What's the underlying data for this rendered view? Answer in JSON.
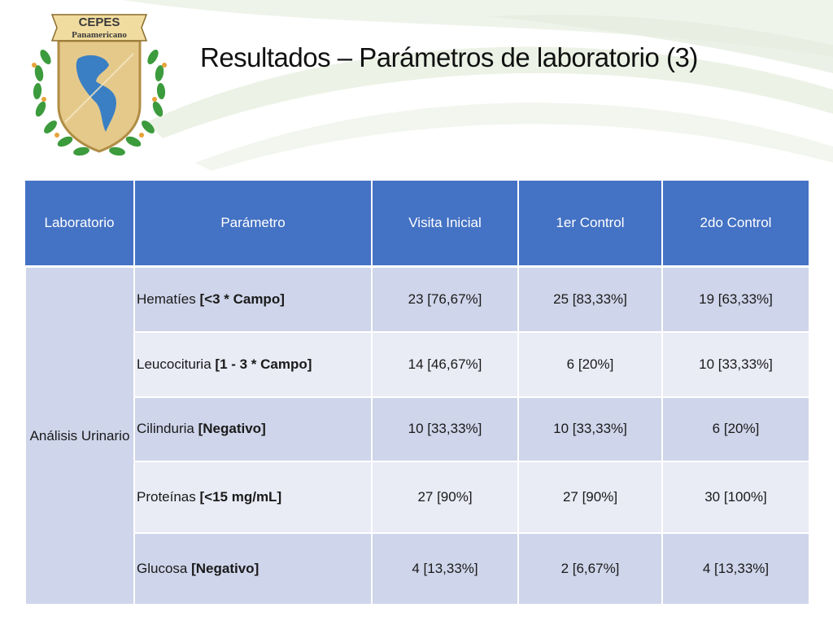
{
  "slide": {
    "title": "Resultados – Parámetros de laboratorio (3)",
    "logo": {
      "name": "CEPES",
      "sub": "Panamericano"
    }
  },
  "table": {
    "headers": [
      "Laboratorio",
      "Parámetro",
      "Visita Inicial",
      "1er Control",
      "2do Control"
    ],
    "group_label": "Análisis Urinario",
    "rows": [
      {
        "param": "Hematíes",
        "criteria": "[<3 * Campo]",
        "visita_inicial": "23 [76,67%]",
        "control_1": "25 [83,33%]",
        "control_2": "19 [63,33%]"
      },
      {
        "param": "Leucocituria",
        "criteria": "[1 - 3 * Campo]",
        "visita_inicial": "14 [46,67%]",
        "control_1": "6 [20%]",
        "control_2": "10 [33,33%]"
      },
      {
        "param": "Cilinduria",
        "criteria": "[Negativo]",
        "visita_inicial": "10 [33,33%]",
        "control_1": "10 [33,33%]",
        "control_2": "6 [20%]"
      },
      {
        "param": "Proteínas",
        "criteria": "[<15 mg/mL]",
        "visita_inicial": "27 [90%]",
        "control_1": "27 [90%]",
        "control_2": "30 [100%]"
      },
      {
        "param": "Glucosa",
        "criteria": "[Negativo]",
        "visita_inicial": "4 [13,33%]",
        "control_1": "2 [6,67%]",
        "control_2": "4 [13,33%]"
      }
    ]
  },
  "colors": {
    "header_bg": "#4472c4",
    "row_dark": "#cfd5ea",
    "row_light": "#e9ebf5",
    "logo_gold": "#d9b96b",
    "logo_map_blue": "#3a7fc4",
    "laurel_green": "#3c9b3c"
  }
}
